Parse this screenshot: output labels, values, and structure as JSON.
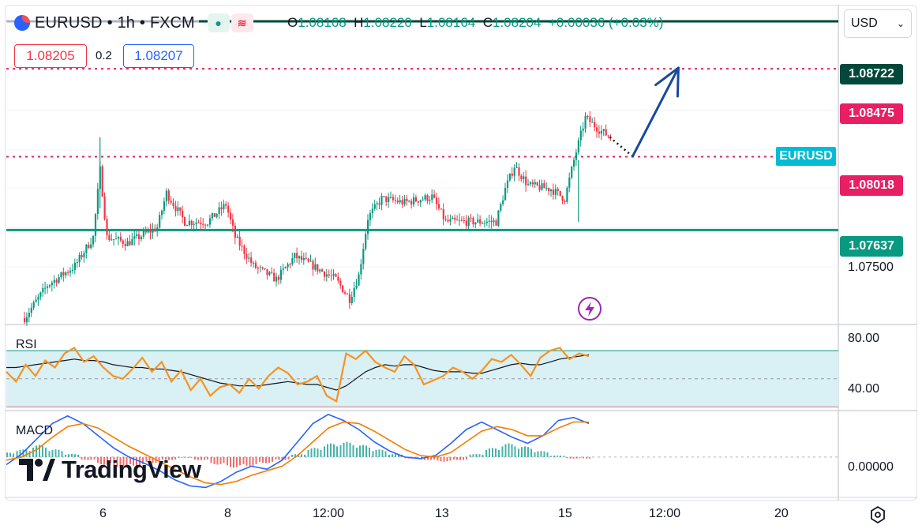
{
  "header": {
    "symbol": "EURUSD",
    "separator": "•",
    "timeframe": "1h",
    "exchange": "FXCM",
    "ohlc": {
      "o_label": "O",
      "o": "1.08168",
      "h_label": "H",
      "h": "1.08220",
      "l_label": "L",
      "l": "1.08164",
      "c_label": "C",
      "c": "1.08204",
      "change": "+0.00036 (+0.03%)"
    },
    "bid": "1.08205",
    "spread": "0.2",
    "ask": "1.08207",
    "currency": "USD",
    "brand": "TradingView",
    "market_icon": "market-open-dot",
    "compare_icon": "wave-icon"
  },
  "colors": {
    "up": "#089981",
    "down": "#f23645",
    "support": "#089981",
    "resistance_strong": "#00493a",
    "resistance_dotted": "#e91e63",
    "arrow": "#1848a0",
    "symbol_tag": "#00bcd4",
    "rsi_line": "#f7931e",
    "rsi_ma": "#131722",
    "macd_line": "#2962ff",
    "signal_line": "#f57c00",
    "rsi_band": "#d9f0f5"
  },
  "price_levels": [
    {
      "value": "1.08722",
      "color": "#00493a",
      "style": "solid"
    },
    {
      "value": "1.08475",
      "color": "#e91e63",
      "style": "dotted"
    },
    {
      "value": "1.08018",
      "color": "#e91e63",
      "style": "dotted"
    },
    {
      "value": "1.07637",
      "color": "#089981",
      "style": "solid"
    }
  ],
  "price_axis_labels": [
    "1.07500"
  ],
  "rsi_axis_labels": [
    "80.00",
    "40.00"
  ],
  "macd_axis_labels": [
    "0.00000"
  ],
  "time_axis_labels": [
    "6",
    "8",
    "12:00",
    "13",
    "15",
    "12:00",
    "20"
  ],
  "symbol_tag": "EURUSD",
  "chart_data": [
    {
      "type": "candlestick",
      "title": "EURUSD • 1h • FXCM",
      "ylim": [
        1.0715,
        1.088
      ],
      "anchors": [
        [
          0,
          1.0718
        ],
        [
          10,
          1.0735
        ],
        [
          22,
          1.0745
        ],
        [
          30,
          1.076
        ],
        [
          33,
          1.0795
        ],
        [
          36,
          1.076
        ],
        [
          45,
          1.0757
        ],
        [
          58,
          1.0765
        ],
        [
          62,
          1.0783
        ],
        [
          70,
          1.0768
        ],
        [
          80,
          1.0768
        ],
        [
          88,
          1.0777
        ],
        [
          92,
          1.076
        ],
        [
          100,
          1.0745
        ],
        [
          110,
          1.0738
        ],
        [
          118,
          1.075
        ],
        [
          126,
          1.0745
        ],
        [
          136,
          1.0738
        ],
        [
          142,
          1.0728
        ],
        [
          146,
          1.074
        ],
        [
          150,
          1.077
        ],
        [
          156,
          1.078
        ],
        [
          166,
          1.0778
        ],
        [
          178,
          1.0781
        ],
        [
          184,
          1.0768
        ],
        [
          194,
          1.0768
        ],
        [
          206,
          1.0768
        ],
        [
          210,
          1.0785
        ],
        [
          214,
          1.0797
        ],
        [
          220,
          1.0787
        ],
        [
          230,
          1.0785
        ],
        [
          236,
          1.078
        ],
        [
          240,
          1.08
        ],
        [
          245,
          1.0822
        ],
        [
          252,
          1.0815
        ],
        [
          256,
          1.0812
        ]
      ],
      "annotations": [
        {
          "type": "dotted-line",
          "from": [
            256,
            1.0812
          ],
          "to": [
            266,
            1.0802
          ]
        },
        {
          "type": "arrow",
          "from": [
            266,
            1.0802
          ],
          "to": [
            286,
            1.0848
          ]
        }
      ]
    },
    {
      "type": "line",
      "title": "RSI",
      "ylim": [
        28,
        88
      ],
      "levels": [
        70,
        50,
        30
      ],
      "series": [
        {
          "values": [
            55,
            48,
            60,
            52,
            63,
            58,
            68,
            72,
            62,
            66,
            58,
            52,
            50,
            57,
            65,
            55,
            62,
            48,
            56,
            42,
            50,
            38,
            44,
            46,
            40,
            50,
            43,
            52,
            58,
            54,
            46,
            48,
            52,
            38,
            34,
            68,
            64,
            70,
            62,
            58,
            55,
            66,
            60,
            46,
            49,
            52,
            58,
            55,
            50,
            56,
            64,
            62,
            67,
            60,
            52,
            65,
            70,
            72,
            64,
            68,
            66
          ]
        },
        {
          "values": [
            58,
            58,
            59,
            60,
            61,
            62,
            63,
            64,
            63,
            63,
            62,
            60,
            59,
            58,
            58,
            57,
            57,
            56,
            55,
            53,
            51,
            49,
            47,
            46,
            45,
            45,
            45,
            46,
            47,
            48,
            47,
            46,
            46,
            44,
            42,
            45,
            50,
            55,
            58,
            60,
            59,
            60,
            60,
            58,
            56,
            55,
            55,
            55,
            54,
            54,
            56,
            58,
            60,
            61,
            60,
            60,
            62,
            64,
            65,
            66,
            67
          ]
        }
      ]
    },
    {
      "type": "bar",
      "title": "MACD",
      "ylim": [
        -2.6,
        3.0
      ],
      "series": [
        {
          "name": "Histogram",
          "values": [
            0.3,
            0.5,
            0.8,
            0.5,
            0.2,
            -0.2,
            -0.5,
            -0.7,
            -0.6,
            -0.4,
            -0.2,
            0.0,
            -0.2,
            -0.5,
            -0.7,
            -0.6,
            -0.4,
            -0.2,
            0.2,
            0.6,
            0.9,
            1.0,
            0.8,
            0.5,
            0.2,
            -0.1,
            -0.2,
            -0.3,
            -0.2,
            0.2,
            0.6,
            0.9,
            0.7,
            0.4,
            0.1,
            -0.1,
            -0.1
          ]
        },
        {
          "values": [
            -0.5,
            0.2,
            1.2,
            2.2,
            2.7,
            2.2,
            1.4,
            0.6,
            0.0,
            -0.4,
            -0.9,
            -1.5,
            -1.9,
            -2.0,
            -1.6,
            -1.0,
            -0.6,
            -0.8,
            -0.2,
            1.0,
            2.2,
            2.8,
            2.4,
            1.8,
            1.0,
            0.4,
            0.0,
            -0.1,
            0.1,
            0.9,
            1.8,
            2.3,
            1.8,
            1.3,
            0.9,
            1.4,
            2.4,
            2.6,
            2.2
          ]
        },
        {
          "values": [
            -0.2,
            0.0,
            0.5,
            1.3,
            2.0,
            2.2,
            1.9,
            1.3,
            0.7,
            0.2,
            -0.3,
            -0.8,
            -1.3,
            -1.7,
            -1.8,
            -1.6,
            -1.2,
            -0.9,
            -0.6,
            0.1,
            1.0,
            1.9,
            2.3,
            2.2,
            1.7,
            1.1,
            0.5,
            0.1,
            -0.0,
            0.3,
            1.0,
            1.7,
            2.0,
            1.8,
            1.4,
            1.4,
            1.9,
            2.3,
            2.3
          ]
        }
      ]
    }
  ]
}
